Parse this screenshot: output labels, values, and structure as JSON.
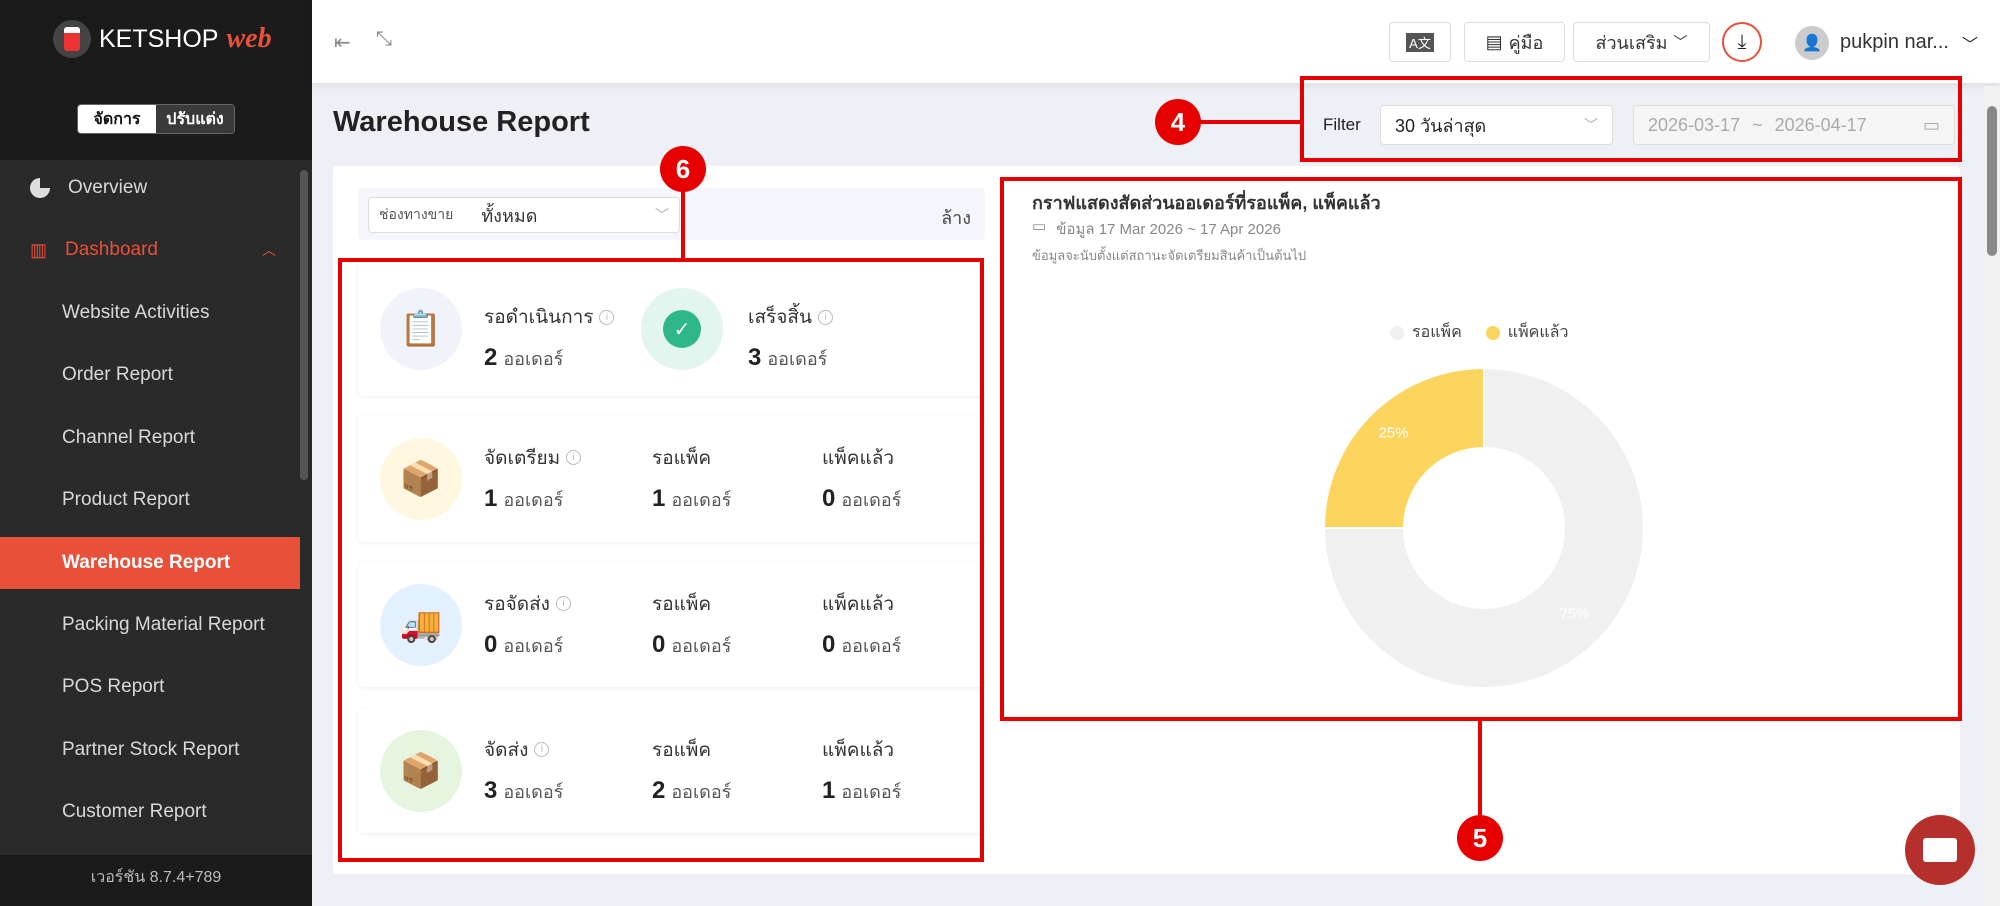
{
  "brand": {
    "logo_text": "KETSHOP",
    "logo_accent": "web"
  },
  "mode_toggle": {
    "manage": "จัดการ",
    "customize": "ปรับแต่ง"
  },
  "sidebar": {
    "items": [
      {
        "label": "Overview",
        "icon": "pie-chart-icon"
      },
      {
        "label": "Dashboard",
        "icon": "bar-chart-icon",
        "expanded": true
      },
      {
        "label": "Website Activities"
      },
      {
        "label": "Order Report"
      },
      {
        "label": "Channel Report"
      },
      {
        "label": "Product Report"
      },
      {
        "label": "Warehouse Report",
        "active": true
      },
      {
        "label": "Packing Material Report"
      },
      {
        "label": "POS Report"
      },
      {
        "label": "Partner Stock Report"
      },
      {
        "label": "Customer Report"
      }
    ],
    "version": "เวอร์ชัน 8.7.4+789"
  },
  "topbar": {
    "manual": "คู่มือ",
    "addons": "ส่วนเสริม",
    "user": "pukpin nar..."
  },
  "page": {
    "title": "Warehouse Report"
  },
  "filter": {
    "label": "Filter",
    "period": "30 วันล่าสุด",
    "date_from": "2026-03-17",
    "date_sep": "~",
    "date_to": "2026-04-17"
  },
  "channel_filter": {
    "label": "ช่องทางขาย",
    "value": "ทั้งหมด",
    "clear": "ล้าง"
  },
  "unit": "ออเดอร์",
  "cards": [
    {
      "icon": "clipboard-clock-icon",
      "stats": [
        {
          "label": "รอดำเนินการ",
          "value": "2",
          "info": true
        }
      ],
      "second": {
        "icon": "check-circle-icon",
        "label": "เสร็จสิ้น",
        "value": "3",
        "info": true
      }
    },
    {
      "icon": "box-check-icon",
      "stats": [
        {
          "label": "จัดเตรียม",
          "value": "1",
          "info": true
        },
        {
          "label": "รอแพ็ค",
          "value": "1"
        },
        {
          "label": "แพ็คแล้ว",
          "value": "0"
        }
      ]
    },
    {
      "icon": "delivery-truck-icon",
      "stats": [
        {
          "label": "รอจัดส่ง",
          "value": "0",
          "info": true
        },
        {
          "label": "รอแพ็ค",
          "value": "0"
        },
        {
          "label": "แพ็คแล้ว",
          "value": "0"
        }
      ]
    },
    {
      "icon": "box-leaf-icon",
      "stats": [
        {
          "label": "จัดส่ง",
          "value": "3",
          "info": true
        },
        {
          "label": "รอแพ็ค",
          "value": "2"
        },
        {
          "label": "แพ็คแล้ว",
          "value": "1"
        }
      ]
    }
  ],
  "chart_data": {
    "type": "pie",
    "donut": true,
    "title": "กราฟแสดงสัดส่วนออเดอร์ที่รอแพ็ค, แพ็คแล้ว",
    "subtitle": "ข้อมูล 17 Mar 2026 ~ 17 Apr 2026",
    "note": "ข้อมูลจะนับตั้งแต่สถานะจัดเตรียมสินค้าเป็นต้นไป",
    "legend_position": "top",
    "categories": [
      "รอแพ็ค",
      "แพ็คแล้ว"
    ],
    "values": [
      75,
      25
    ],
    "labels": [
      "75%",
      "25%"
    ],
    "colors": [
      "#f0f0f0",
      "#fcd55f"
    ]
  },
  "annotations": [
    "4",
    "5",
    "6"
  ],
  "colors": {
    "accent": "#e8503a",
    "annotation": "#e60000"
  }
}
